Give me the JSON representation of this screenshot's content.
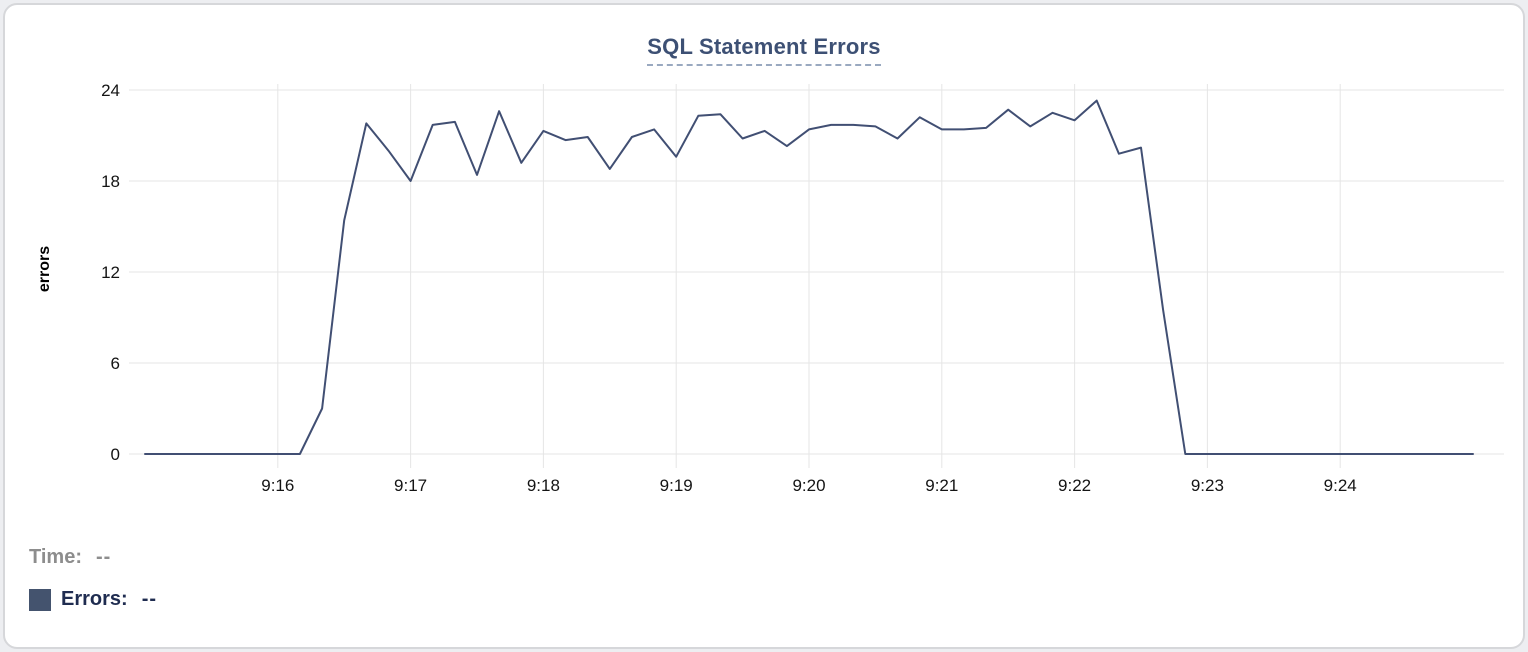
{
  "card": {
    "title": "SQL Statement Errors"
  },
  "footer": {
    "time_label": "Time:",
    "time_value": "--",
    "errors_label": "Errors:",
    "errors_value": "--",
    "legend_swatch_color": "#44536e"
  },
  "chart_data": {
    "type": "line",
    "title": "SQL Statement Errors",
    "xlabel": "",
    "ylabel": "errors",
    "ylim": [
      0,
      24
    ],
    "yticks": [
      0,
      6,
      12,
      18,
      24
    ],
    "xticks": [
      "9:16",
      "9:17",
      "9:18",
      "9:19",
      "9:20",
      "9:21",
      "9:22",
      "9:23",
      "9:24"
    ],
    "x_range": [
      "9:15:00",
      "9:25:00"
    ],
    "grid": true,
    "legend_position": "bottom-left",
    "colors": {
      "line": "#414f73",
      "gridline": "#e5e5e5",
      "tick_text": "#141414",
      "title": "#3d5074"
    },
    "series": [
      {
        "name": "Errors",
        "color": "#414f73",
        "times": [
          "9:15:00",
          "9:15:10",
          "9:15:20",
          "9:15:30",
          "9:15:40",
          "9:15:50",
          "9:16:00",
          "9:16:10",
          "9:16:20",
          "9:16:30",
          "9:16:40",
          "9:16:50",
          "9:17:00",
          "9:17:10",
          "9:17:20",
          "9:17:30",
          "9:17:40",
          "9:17:50",
          "9:18:00",
          "9:18:10",
          "9:18:20",
          "9:18:30",
          "9:18:40",
          "9:18:50",
          "9:19:00",
          "9:19:10",
          "9:19:20",
          "9:19:30",
          "9:19:40",
          "9:19:50",
          "9:20:00",
          "9:20:10",
          "9:20:20",
          "9:20:30",
          "9:20:40",
          "9:20:50",
          "9:21:00",
          "9:21:10",
          "9:21:20",
          "9:21:30",
          "9:21:40",
          "9:21:50",
          "9:22:00",
          "9:22:10",
          "9:22:20",
          "9:22:30",
          "9:22:40",
          "9:22:50",
          "9:23:00",
          "9:23:10",
          "9:23:20",
          "9:23:30",
          "9:23:40",
          "9:23:50",
          "9:24:00",
          "9:24:10",
          "9:24:20",
          "9:24:30",
          "9:24:40",
          "9:24:50",
          "9:25:00"
        ],
        "values": [
          0,
          0,
          0,
          0,
          0,
          0,
          0,
          0,
          3,
          15.4,
          21.8,
          20,
          18,
          21.7,
          21.9,
          18.4,
          22.6,
          19.2,
          21.3,
          20.7,
          20.9,
          18.8,
          20.9,
          21.4,
          19.6,
          22.3,
          22.4,
          20.8,
          21.3,
          20.3,
          21.4,
          21.7,
          21.7,
          21.6,
          20.8,
          22.2,
          21.4,
          21.4,
          21.5,
          22.7,
          21.6,
          22.5,
          22.0,
          23.3,
          19.8,
          20.2,
          9.5,
          0,
          0,
          0,
          0,
          0,
          0,
          0,
          0,
          0,
          0,
          0,
          0,
          0,
          0
        ]
      }
    ]
  }
}
